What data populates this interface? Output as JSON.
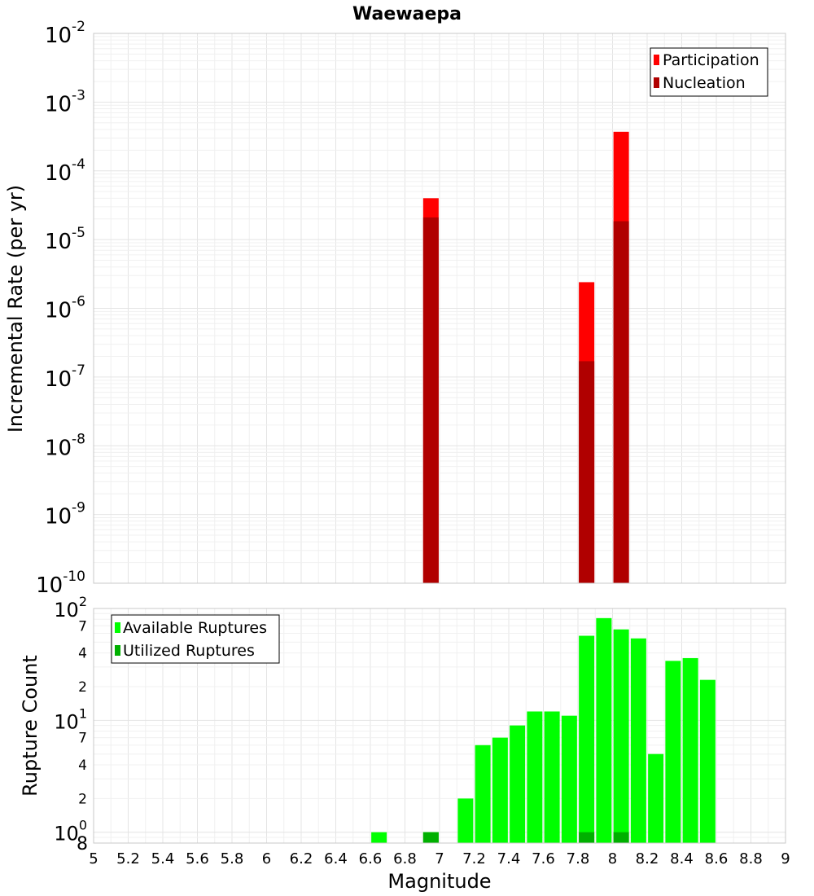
{
  "chart_data": [
    {
      "type": "bar",
      "title": "Waewaepa",
      "ylabel": "Incremental Rate (per yr)",
      "xlabel": "",
      "xlim": [
        5,
        9
      ],
      "ylim": [
        1e-10,
        0.01
      ],
      "yscale": "log",
      "grid": true,
      "legend_position": "top-right",
      "y_tick_labels": [
        {
          "value": 0.01,
          "base": "10",
          "exp": "-2"
        },
        {
          "value": 0.001,
          "base": "10",
          "exp": "-3"
        },
        {
          "value": 0.0001,
          "base": "10",
          "exp": "-4"
        },
        {
          "value": 1e-05,
          "base": "10",
          "exp": "-5"
        },
        {
          "value": 1e-06,
          "base": "10",
          "exp": "-6"
        },
        {
          "value": 1e-07,
          "base": "10",
          "exp": "-7"
        },
        {
          "value": 1e-08,
          "base": "10",
          "exp": "-8"
        },
        {
          "value": 1e-09,
          "base": "10",
          "exp": "-9"
        },
        {
          "value": 1e-10,
          "base": "10",
          "exp": "-10"
        }
      ],
      "series": [
        {
          "name": "Participation",
          "color": "#ff0000",
          "points": [
            {
              "x": 6.95,
              "y": 4e-05
            },
            {
              "x": 7.85,
              "y": 2.4e-06
            },
            {
              "x": 8.05,
              "y": 0.00037
            }
          ]
        },
        {
          "name": "Nucleation",
          "color": "#b00000",
          "points": [
            {
              "x": 6.95,
              "y": 2.1e-05
            },
            {
              "x": 7.85,
              "y": 1.7e-07
            },
            {
              "x": 8.05,
              "y": 1.85e-05
            }
          ]
        }
      ]
    },
    {
      "type": "bar",
      "title": "",
      "ylabel": "Rupture Count",
      "xlabel": "Magnitude",
      "xlim": [
        5,
        9
      ],
      "ylim": [
        0.8,
        100
      ],
      "yscale": "log",
      "grid": true,
      "legend_position": "top-left",
      "x_tick_labels": [
        "5",
        "5.2",
        "5.4",
        "5.6",
        "5.8",
        "6",
        "6.2",
        "6.4",
        "6.6",
        "6.8",
        "7",
        "7.2",
        "7.4",
        "7.6",
        "7.8",
        "8",
        "8.2",
        "8.4",
        "8.6",
        "8.8",
        "9"
      ],
      "y_tick_labels": [
        {
          "value": 100,
          "base": "10",
          "exp": "2"
        },
        {
          "value": 70,
          "base": "7",
          "exp": ""
        },
        {
          "value": 40,
          "base": "4",
          "exp": ""
        },
        {
          "value": 20,
          "base": "2",
          "exp": ""
        },
        {
          "value": 10,
          "base": "10",
          "exp": "1"
        },
        {
          "value": 7,
          "base": "7",
          "exp": ""
        },
        {
          "value": 4,
          "base": "4",
          "exp": ""
        },
        {
          "value": 2,
          "base": "2",
          "exp": ""
        },
        {
          "value": 1,
          "base": "10",
          "exp": "0"
        },
        {
          "value": 0.8,
          "base": "8",
          "exp": ""
        }
      ],
      "series": [
        {
          "name": "Available Ruptures",
          "color": "#00ff00",
          "points": [
            {
              "x": 6.65,
              "y": 1
            },
            {
              "x": 6.95,
              "y": 1
            },
            {
              "x": 7.15,
              "y": 2
            },
            {
              "x": 7.25,
              "y": 6
            },
            {
              "x": 7.35,
              "y": 7
            },
            {
              "x": 7.45,
              "y": 9
            },
            {
              "x": 7.55,
              "y": 12
            },
            {
              "x": 7.65,
              "y": 12
            },
            {
              "x": 7.75,
              "y": 11
            },
            {
              "x": 7.85,
              "y": 57
            },
            {
              "x": 7.95,
              "y": 82
            },
            {
              "x": 8.05,
              "y": 65
            },
            {
              "x": 8.15,
              "y": 54
            },
            {
              "x": 8.25,
              "y": 5
            },
            {
              "x": 8.35,
              "y": 34
            },
            {
              "x": 8.45,
              "y": 36
            },
            {
              "x": 8.55,
              "y": 23
            }
          ]
        },
        {
          "name": "Utilized Ruptures",
          "color": "#00b000",
          "points": [
            {
              "x": 6.95,
              "y": 1
            },
            {
              "x": 7.85,
              "y": 1
            },
            {
              "x": 8.05,
              "y": 1
            }
          ]
        }
      ]
    }
  ]
}
